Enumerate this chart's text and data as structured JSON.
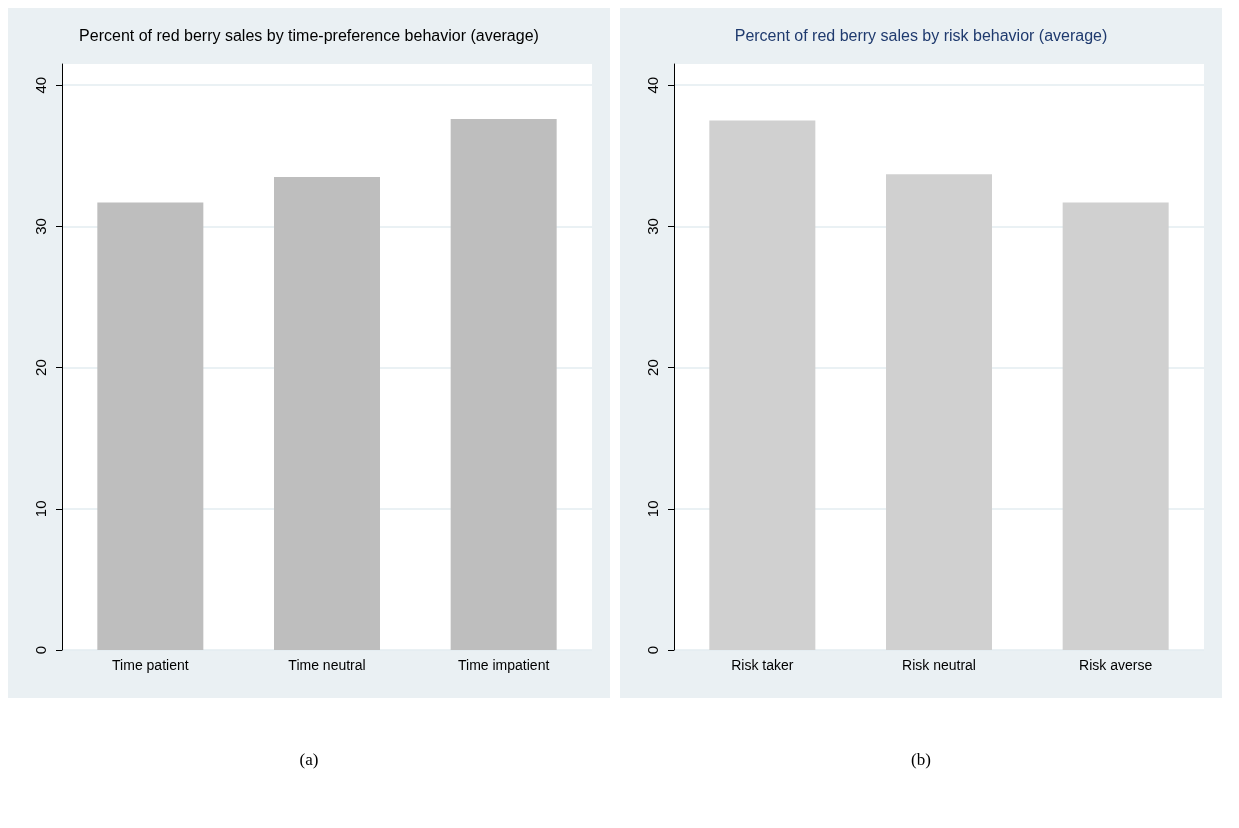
{
  "chart_data": [
    {
      "type": "bar",
      "title": "Percent of red berry sales by time-preference behavior (average)",
      "categories": [
        "Time patient",
        "Time neutral",
        "Time impatient"
      ],
      "values": [
        31.7,
        33.5,
        37.6
      ],
      "color": "#bebebe",
      "ylim": [
        0,
        41.5
      ],
      "yticks": [
        0,
        10,
        20,
        30,
        40
      ],
      "grid": "y",
      "annotations": [
        "(a)"
      ]
    },
    {
      "type": "bar",
      "title": "Percent of red berry sales by risk behavior (average)",
      "categories": [
        "Risk taker",
        "Risk neutral",
        "Risk averse"
      ],
      "values": [
        37.5,
        33.7,
        31.7
      ],
      "color": "#d0d0d0",
      "ylim": [
        0,
        41.5
      ],
      "yticks": [
        0,
        10,
        20,
        30,
        40
      ],
      "grid": "y",
      "annotations": [
        "(b)"
      ]
    }
  ]
}
